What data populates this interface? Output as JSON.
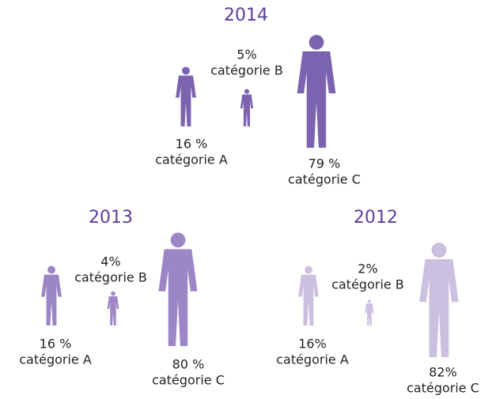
{
  "chart_data": [
    {
      "type": "pictogram",
      "title": "2014",
      "color": "#7b63b0",
      "categories": [
        "catégorie A",
        "catégorie B",
        "catégorie C"
      ],
      "values": [
        16,
        5,
        79
      ],
      "value_labels": [
        "16 %",
        "5%",
        "79 %"
      ]
    },
    {
      "type": "pictogram",
      "title": "2013",
      "color": "#9d86c6",
      "categories": [
        "catégorie A",
        "catégorie B",
        "catégorie C"
      ],
      "values": [
        16,
        4,
        80
      ],
      "value_labels": [
        "16 %",
        "4%",
        "80 %"
      ]
    },
    {
      "type": "pictogram",
      "title": "2012",
      "color": "#cbc0e0",
      "categories": [
        "catégorie A",
        "catégorie B",
        "catégorie C"
      ],
      "values": [
        16,
        2,
        82
      ],
      "value_labels": [
        "16%",
        "2%",
        "82%"
      ]
    }
  ]
}
